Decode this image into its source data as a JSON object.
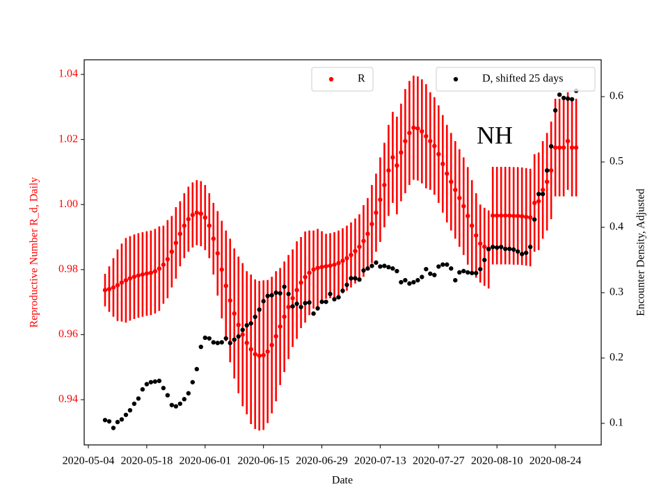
{
  "chart_data": {
    "type": "errorbar",
    "annotation": "NH",
    "x_label": "Date",
    "y_label": "Reproductive Number R_d, Daily",
    "y2_label": "Encounter Density, Adjusted",
    "x": [
      "2020-05-08",
      "2020-05-09",
      "2020-05-10",
      "2020-05-11",
      "2020-05-12",
      "2020-05-13",
      "2020-05-14",
      "2020-05-15",
      "2020-05-16",
      "2020-05-17",
      "2020-05-18",
      "2020-05-19",
      "2020-05-20",
      "2020-05-21",
      "2020-05-22",
      "2020-05-23",
      "2020-05-24",
      "2020-05-25",
      "2020-05-26",
      "2020-05-27",
      "2020-05-28",
      "2020-05-29",
      "2020-05-30",
      "2020-05-31",
      "2020-06-01",
      "2020-06-02",
      "2020-06-03",
      "2020-06-04",
      "2020-06-05",
      "2020-06-06",
      "2020-06-07",
      "2020-06-08",
      "2020-06-09",
      "2020-06-10",
      "2020-06-11",
      "2020-06-12",
      "2020-06-13",
      "2020-06-14",
      "2020-06-15",
      "2020-06-16",
      "2020-06-17",
      "2020-06-18",
      "2020-06-19",
      "2020-06-20",
      "2020-06-21",
      "2020-06-22",
      "2020-06-23",
      "2020-06-24",
      "2020-06-25",
      "2020-06-26",
      "2020-06-27",
      "2020-06-28",
      "2020-06-29",
      "2020-06-30",
      "2020-07-01",
      "2020-07-02",
      "2020-07-03",
      "2020-07-04",
      "2020-07-05",
      "2020-07-06",
      "2020-07-07",
      "2020-07-08",
      "2020-07-09",
      "2020-07-10",
      "2020-07-11",
      "2020-07-12",
      "2020-07-13",
      "2020-07-14",
      "2020-07-15",
      "2020-07-16",
      "2020-07-17",
      "2020-07-18",
      "2020-07-19",
      "2020-07-20",
      "2020-07-21",
      "2020-07-22",
      "2020-07-23",
      "2020-07-24",
      "2020-07-25",
      "2020-07-26",
      "2020-07-27",
      "2020-07-28",
      "2020-07-29",
      "2020-07-30",
      "2020-07-31",
      "2020-08-01",
      "2020-08-02",
      "2020-08-03",
      "2020-08-04",
      "2020-08-05",
      "2020-08-06",
      "2020-08-07",
      "2020-08-08",
      "2020-08-09",
      "2020-08-10",
      "2020-08-11",
      "2020-08-12",
      "2020-08-13",
      "2020-08-14",
      "2020-08-15",
      "2020-08-16",
      "2020-08-17",
      "2020-08-18",
      "2020-08-19",
      "2020-08-20",
      "2020-08-21",
      "2020-08-22",
      "2020-08-23",
      "2020-08-24",
      "2020-08-25",
      "2020-08-26",
      "2020-08-27",
      "2020-08-28",
      "2020-08-29"
    ],
    "series": [
      {
        "name": "R",
        "color": "#ff0000",
        "axis": "y",
        "values": [
          0.9737,
          0.974,
          0.9745,
          0.9752,
          0.976,
          0.9767,
          0.9773,
          0.9778,
          0.9782,
          0.9785,
          0.9788,
          0.979,
          0.9795,
          0.9803,
          0.9815,
          0.9832,
          0.9855,
          0.9882,
          0.991,
          0.9935,
          0.9955,
          0.9968,
          0.9975,
          0.9972,
          0.996,
          0.9935,
          0.9895,
          0.985,
          0.98,
          0.975,
          0.9705,
          0.9665,
          0.963,
          0.96,
          0.9575,
          0.9555,
          0.954,
          0.9535,
          0.9537,
          0.9548,
          0.9568,
          0.9595,
          0.9625,
          0.9655,
          0.9685,
          0.9712,
          0.9737,
          0.976,
          0.9777,
          0.979,
          0.98,
          0.9805,
          0.9808,
          0.981,
          0.9812,
          0.9815,
          0.982,
          0.9827,
          0.9835,
          0.9845,
          0.9857,
          0.987,
          0.9888,
          0.991,
          0.994,
          0.9975,
          1.0015,
          1.006,
          1.0105,
          1.0145,
          1.012,
          1.016,
          1.0195,
          1.022,
          1.0236,
          1.0234,
          1.0225,
          1.021,
          1.0195,
          1.018,
          1.0155,
          1.0125,
          1.0095,
          1.007,
          1.0045,
          1.002,
          0.9995,
          0.9965,
          0.9935,
          0.9905,
          0.988,
          0.987,
          0.9862,
          0.9966,
          0.9966,
          0.9966,
          0.9966,
          0.9966,
          0.9965,
          0.9965,
          0.9964,
          0.9962,
          0.996,
          1.0005,
          1.001,
          1.0045,
          1.007,
          1.0105,
          1.0175,
          1.0175,
          1.0175,
          1.0195,
          1.0175,
          1.0175
        ],
        "errors": [
          0.005,
          0.007,
          0.009,
          0.011,
          0.012,
          0.013,
          0.013,
          0.013,
          0.013,
          0.013,
          0.013,
          0.013,
          0.013,
          0.013,
          0.012,
          0.012,
          0.011,
          0.011,
          0.01,
          0.01,
          0.01,
          0.01,
          0.01,
          0.01,
          0.01,
          0.01,
          0.011,
          0.013,
          0.015,
          0.017,
          0.019,
          0.02,
          0.021,
          0.022,
          0.022,
          0.023,
          0.023,
          0.023,
          0.023,
          0.022,
          0.021,
          0.02,
          0.018,
          0.017,
          0.016,
          0.015,
          0.015,
          0.014,
          0.014,
          0.013,
          0.012,
          0.012,
          0.011,
          0.01,
          0.01,
          0.01,
          0.01,
          0.01,
          0.01,
          0.01,
          0.01,
          0.01,
          0.011,
          0.011,
          0.012,
          0.012,
          0.013,
          0.013,
          0.014,
          0.014,
          0.015,
          0.015,
          0.016,
          0.016,
          0.016,
          0.016,
          0.016,
          0.016,
          0.015,
          0.015,
          0.015,
          0.015,
          0.015,
          0.015,
          0.015,
          0.015,
          0.015,
          0.015,
          0.014,
          0.013,
          0.012,
          0.012,
          0.012,
          0.015,
          0.015,
          0.015,
          0.015,
          0.015,
          0.015,
          0.015,
          0.015,
          0.015,
          0.015,
          0.015,
          0.015,
          0.015,
          0.015,
          0.015,
          0.015,
          0.015,
          0.015,
          0.015,
          0.015,
          0.015
        ]
      },
      {
        "name": "D, shifted 25 days",
        "color": "#000000",
        "axis": "y2",
        "values": [
          0.105,
          0.103,
          0.093,
          0.102,
          0.106,
          0.113,
          0.12,
          0.13,
          0.138,
          0.152,
          0.16,
          0.163,
          0.164,
          0.165,
          0.154,
          0.143,
          0.128,
          0.126,
          0.13,
          0.137,
          0.146,
          0.163,
          0.183,
          0.217,
          0.231,
          0.23,
          0.224,
          0.223,
          0.224,
          0.23,
          0.223,
          0.228,
          0.233,
          0.243,
          0.25,
          0.253,
          0.263,
          0.274,
          0.287,
          0.295,
          0.296,
          0.3,
          0.299,
          0.309,
          0.298,
          0.279,
          0.283,
          0.278,
          0.284,
          0.285,
          0.268,
          0.276,
          0.286,
          0.286,
          0.298,
          0.29,
          0.293,
          0.303,
          0.312,
          0.322,
          0.322,
          0.32,
          0.334,
          0.337,
          0.341,
          0.346,
          0.34,
          0.341,
          0.339,
          0.337,
          0.333,
          0.316,
          0.319,
          0.314,
          0.316,
          0.319,
          0.324,
          0.336,
          0.329,
          0.327,
          0.34,
          0.343,
          0.343,
          0.337,
          0.319,
          0.331,
          0.333,
          0.331,
          0.33,
          0.33,
          0.336,
          0.35,
          0.367,
          0.37,
          0.369,
          0.37,
          0.367,
          0.367,
          0.366,
          0.363,
          0.359,
          0.361,
          0.37,
          0.412,
          0.451,
          0.451,
          0.487,
          0.524,
          0.579,
          0.603,
          0.598,
          0.597,
          0.596,
          0.609
        ]
      }
    ],
    "xlim": [
      "2020-05-03",
      "2020-09-04"
    ],
    "xticks": [
      "2020-05-04",
      "2020-05-18",
      "2020-06-01",
      "2020-06-15",
      "2020-06-29",
      "2020-07-13",
      "2020-07-27",
      "2020-08-10",
      "2020-08-24"
    ],
    "ylim": [
      0.9261,
      1.0445
    ],
    "yticks": [
      0.94,
      0.96,
      0.98,
      {
        "value": 1,
        "label": "1.00"
      },
      1.02,
      1.04
    ],
    "y2lim": [
      0.067,
      0.6564
    ],
    "y2ticks": [
      0.1,
      0.2,
      0.3,
      0.4,
      0.5,
      0.6
    ]
  }
}
